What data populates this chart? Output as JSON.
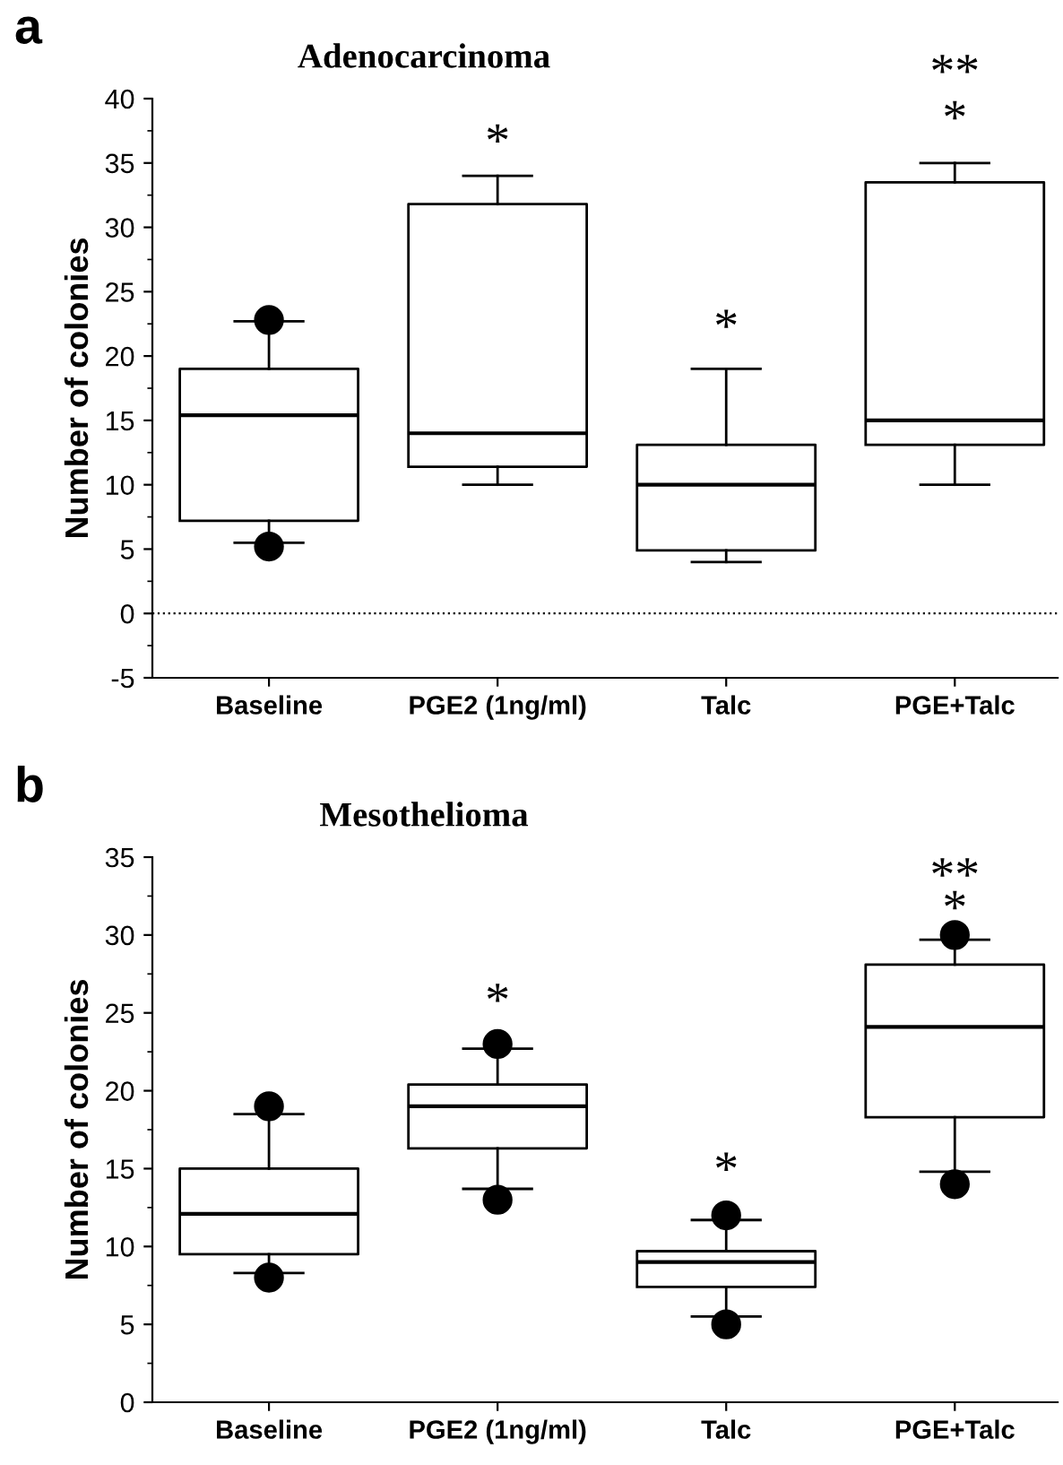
{
  "chart_data": [
    {
      "type": "box",
      "title": "Adenocarcinoma",
      "ylabel": "Number of colonies",
      "categories": [
        "Baseline",
        "PGE2 (1ng/ml)",
        "Talc",
        "PGE+Talc"
      ],
      "boxes": [
        {
          "low": 5.5,
          "q1": 7.2,
          "median": 15.4,
          "q3": 19,
          "high": 22.7,
          "outliers": [
            5.2,
            22.8
          ]
        },
        {
          "low": 10,
          "q1": 11.4,
          "median": 14,
          "q3": 31.8,
          "high": 34
        },
        {
          "low": 4,
          "q1": 4.9,
          "median": 10,
          "q3": 13.1,
          "high": 19
        },
        {
          "low": 10,
          "q1": 13.1,
          "median": 15,
          "q3": 33.5,
          "high": 35
        }
      ],
      "ylim": [
        -5,
        40
      ],
      "yticks": [
        {
          "value": -5,
          "label": "-5"
        },
        0,
        5,
        10,
        15,
        20,
        25,
        30,
        35,
        40
      ],
      "ref_lines": [
        {
          "axis": "y",
          "value": 0,
          "line_style": "dotted",
          "color": "#000000"
        }
      ],
      "annotations": [
        "a",
        "*",
        "*",
        "*",
        "**"
      ],
      "grid": false
    },
    {
      "type": "box",
      "title": "Mesothelioma",
      "ylabel": "Number of colonies",
      "categories": [
        "Baseline",
        "PGE2 (1ng/ml)",
        "Talc",
        "PGE+Talc"
      ],
      "boxes": [
        {
          "low": 8.3,
          "q1": 9.5,
          "median": 12.1,
          "q3": 15,
          "high": 18.5,
          "outliers": [
            8,
            19
          ]
        },
        {
          "low": 13.7,
          "q1": 16.3,
          "median": 19,
          "q3": 20.4,
          "high": 22.7,
          "outliers": [
            13,
            23
          ]
        },
        {
          "low": 5.5,
          "q1": 7.4,
          "median": 9,
          "q3": 9.7,
          "high": 11.7,
          "outliers": [
            5,
            12
          ]
        },
        {
          "low": 14.8,
          "q1": 18.3,
          "median": 24.1,
          "q3": 28.1,
          "high": 29.7,
          "outliers": [
            14,
            30
          ]
        }
      ],
      "ylim": [
        0,
        35
      ],
      "yticks": [
        0,
        5,
        10,
        15,
        20,
        25,
        30,
        35
      ],
      "annotations": [
        "b",
        "*",
        "*",
        "*",
        "**"
      ],
      "grid": false
    }
  ]
}
